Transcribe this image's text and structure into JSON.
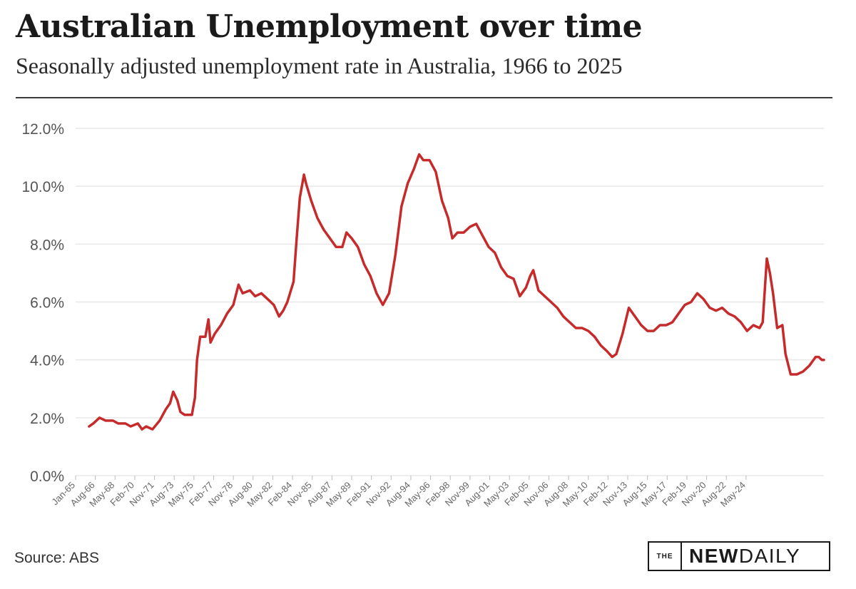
{
  "header": {
    "title": "Australian Unemployment over time",
    "subtitle": "Seasonally adjusted unemployment rate in Australia, 1966 to 2025"
  },
  "footer": {
    "source": "Source: ABS",
    "brand_prefix": "THE",
    "brand_bold": "NEW",
    "brand_light": "DAILY"
  },
  "colors": {
    "line": "#c62a2a",
    "grid": "#e8e8e8",
    "text": "#555555"
  },
  "chart_data": {
    "type": "line",
    "title": "Australian Unemployment over time",
    "subtitle": "Seasonally adjusted unemployment rate in Australia, 1966 to 2025",
    "ylim": [
      0,
      12
    ],
    "y_ticks": [
      "0.0%",
      "2.0%",
      "4.0%",
      "6.0%",
      "8.0%",
      "10.0%",
      "12.0%"
    ],
    "x_range": [
      "1965-01",
      "2025-02"
    ],
    "x_ticks": [
      "Jan-65",
      "Aug-66",
      "May-68",
      "Feb-70",
      "Nov-71",
      "Aug-73",
      "May-75",
      "Feb-77",
      "Nov-78",
      "Aug-80",
      "May-82",
      "Feb-84",
      "Nov-85",
      "Aug-87",
      "May-89",
      "Feb-91",
      "Nov-92",
      "Aug-94",
      "May-96",
      "Feb-98",
      "Nov-99",
      "Aug-01",
      "May-03",
      "Feb-05",
      "Nov-06",
      "Aug-08",
      "May-10",
      "Feb-12",
      "Nov-13",
      "Aug-15",
      "May-17",
      "Feb-19",
      "Nov-20",
      "Aug-22",
      "May-24"
    ],
    "grid": true,
    "series": [
      {
        "values": [
          [
            "1966-02",
            1.7
          ],
          [
            "1966-06",
            1.8
          ],
          [
            "1966-12",
            2.0
          ],
          [
            "1967-06",
            1.9
          ],
          [
            "1968-01",
            1.9
          ],
          [
            "1968-06",
            1.8
          ],
          [
            "1969-01",
            1.8
          ],
          [
            "1969-06",
            1.7
          ],
          [
            "1970-01",
            1.8
          ],
          [
            "1970-05",
            1.6
          ],
          [
            "1970-09",
            1.7
          ],
          [
            "1971-03",
            1.6
          ],
          [
            "1971-10",
            1.9
          ],
          [
            "1972-04",
            2.3
          ],
          [
            "1972-08",
            2.5
          ],
          [
            "1972-11",
            2.9
          ],
          [
            "1973-03",
            2.6
          ],
          [
            "1973-06",
            2.2
          ],
          [
            "1973-10",
            2.1
          ],
          [
            "1974-05",
            2.1
          ],
          [
            "1974-08",
            2.7
          ],
          [
            "1974-10",
            4.0
          ],
          [
            "1975-01",
            4.8
          ],
          [
            "1975-06",
            4.8
          ],
          [
            "1975-09",
            5.4
          ],
          [
            "1975-11",
            4.6
          ],
          [
            "1976-03",
            4.9
          ],
          [
            "1976-09",
            5.2
          ],
          [
            "1977-03",
            5.6
          ],
          [
            "1977-09",
            5.9
          ],
          [
            "1978-02",
            6.6
          ],
          [
            "1978-06",
            6.3
          ],
          [
            "1979-01",
            6.4
          ],
          [
            "1979-06",
            6.2
          ],
          [
            "1979-12",
            6.3
          ],
          [
            "1980-06",
            6.1
          ],
          [
            "1980-12",
            5.9
          ],
          [
            "1981-05",
            5.5
          ],
          [
            "1981-09",
            5.7
          ],
          [
            "1982-01",
            6.0
          ],
          [
            "1982-07",
            6.7
          ],
          [
            "1982-10",
            8.2
          ],
          [
            "1983-01",
            9.6
          ],
          [
            "1983-05",
            10.4
          ],
          [
            "1983-07",
            10.1
          ],
          [
            "1983-12",
            9.5
          ],
          [
            "1984-06",
            8.9
          ],
          [
            "1984-12",
            8.5
          ],
          [
            "1985-06",
            8.2
          ],
          [
            "1985-12",
            7.9
          ],
          [
            "1986-06",
            7.9
          ],
          [
            "1986-10",
            8.4
          ],
          [
            "1987-03",
            8.2
          ],
          [
            "1987-09",
            7.9
          ],
          [
            "1988-03",
            7.3
          ],
          [
            "1988-09",
            6.9
          ],
          [
            "1989-03",
            6.3
          ],
          [
            "1989-09",
            5.9
          ],
          [
            "1990-03",
            6.3
          ],
          [
            "1990-09",
            7.6
          ],
          [
            "1991-03",
            9.3
          ],
          [
            "1991-09",
            10.1
          ],
          [
            "1992-03",
            10.6
          ],
          [
            "1992-08",
            11.1
          ],
          [
            "1992-12",
            10.9
          ],
          [
            "1993-06",
            10.9
          ],
          [
            "1993-12",
            10.5
          ],
          [
            "1994-06",
            9.5
          ],
          [
            "1994-12",
            8.9
          ],
          [
            "1995-04",
            8.2
          ],
          [
            "1995-09",
            8.4
          ],
          [
            "1996-03",
            8.4
          ],
          [
            "1996-09",
            8.6
          ],
          [
            "1997-03",
            8.7
          ],
          [
            "1997-09",
            8.3
          ],
          [
            "1998-03",
            7.9
          ],
          [
            "1998-09",
            7.7
          ],
          [
            "1999-03",
            7.2
          ],
          [
            "1999-09",
            6.9
          ],
          [
            "2000-03",
            6.8
          ],
          [
            "2000-09",
            6.2
          ],
          [
            "2001-03",
            6.5
          ],
          [
            "2001-07",
            6.9
          ],
          [
            "2001-10",
            7.1
          ],
          [
            "2002-03",
            6.4
          ],
          [
            "2002-09",
            6.2
          ],
          [
            "2003-03",
            6.0
          ],
          [
            "2003-09",
            5.8
          ],
          [
            "2004-03",
            5.5
          ],
          [
            "2004-09",
            5.3
          ],
          [
            "2005-03",
            5.1
          ],
          [
            "2005-09",
            5.1
          ],
          [
            "2006-03",
            5.0
          ],
          [
            "2006-09",
            4.8
          ],
          [
            "2007-03",
            4.5
          ],
          [
            "2007-09",
            4.3
          ],
          [
            "2008-02",
            4.1
          ],
          [
            "2008-06",
            4.2
          ],
          [
            "2008-12",
            4.9
          ],
          [
            "2009-06",
            5.8
          ],
          [
            "2009-12",
            5.5
          ],
          [
            "2010-06",
            5.2
          ],
          [
            "2010-12",
            5.0
          ],
          [
            "2011-06",
            5.0
          ],
          [
            "2011-12",
            5.2
          ],
          [
            "2012-06",
            5.2
          ],
          [
            "2012-12",
            5.3
          ],
          [
            "2013-06",
            5.6
          ],
          [
            "2013-12",
            5.9
          ],
          [
            "2014-06",
            6.0
          ],
          [
            "2014-12",
            6.3
          ],
          [
            "2015-06",
            6.1
          ],
          [
            "2015-12",
            5.8
          ],
          [
            "2016-06",
            5.7
          ],
          [
            "2016-12",
            5.8
          ],
          [
            "2017-06",
            5.6
          ],
          [
            "2017-12",
            5.5
          ],
          [
            "2018-06",
            5.3
          ],
          [
            "2018-12",
            5.0
          ],
          [
            "2019-06",
            5.2
          ],
          [
            "2019-12",
            5.1
          ],
          [
            "2020-03",
            5.3
          ],
          [
            "2020-07",
            7.5
          ],
          [
            "2020-10",
            7.0
          ],
          [
            "2021-01",
            6.3
          ],
          [
            "2021-05",
            5.1
          ],
          [
            "2021-10",
            5.2
          ],
          [
            "2022-01",
            4.2
          ],
          [
            "2022-06",
            3.5
          ],
          [
            "2022-12",
            3.5
          ],
          [
            "2023-06",
            3.6
          ],
          [
            "2023-12",
            3.8
          ],
          [
            "2024-06",
            4.1
          ],
          [
            "2024-09",
            4.1
          ],
          [
            "2024-12",
            4.0
          ],
          [
            "2025-02",
            4.0
          ]
        ]
      }
    ]
  }
}
